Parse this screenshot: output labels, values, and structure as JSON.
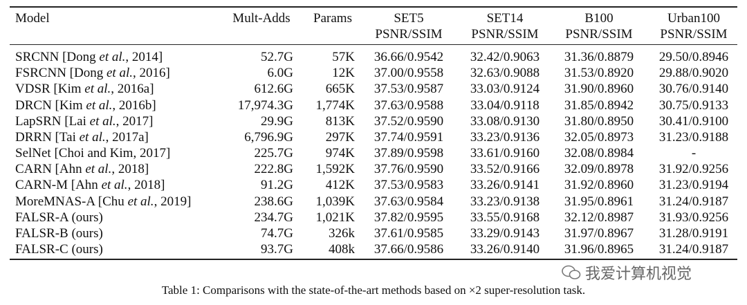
{
  "table": {
    "columns": [
      {
        "name": "Model"
      },
      {
        "name": "Mult-Adds"
      },
      {
        "name": "Params"
      },
      {
        "name": "SET5",
        "sub": "PSNR/SSIM"
      },
      {
        "name": "SET14",
        "sub": "PSNR/SSIM"
      },
      {
        "name": "B100",
        "sub": "PSNR/SSIM"
      },
      {
        "name": "Urban100",
        "sub": "PSNR/SSIM"
      }
    ],
    "rows": [
      [
        "SRCNN [Dong et al., 2014]",
        "52.7G",
        "57K",
        "36.66/0.9542",
        "32.42/0.9063",
        "31.36/0.8879",
        "29.50/0.8946"
      ],
      [
        "FSRCNN [Dong et al., 2016]",
        "6.0G",
        "12K",
        "37.00/0.9558",
        "32.63/0.9088",
        "31.53/0.8920",
        "29.88/0.9020"
      ],
      [
        "VDSR [Kim et al., 2016a]",
        "612.6G",
        "665K",
        "37.53/0.9587",
        "33.03/0.9124",
        "31.90/0.8960",
        "30.76/0.9140"
      ],
      [
        "DRCN [Kim et al., 2016b]",
        "17,974.3G",
        "1,774K",
        "37.63/0.9588",
        "33.04/0.9118",
        "31.85/0.8942",
        "30.75/0.9133"
      ],
      [
        "LapSRN [Lai et al., 2017]",
        "29.9G",
        "813K",
        "37.52/0.9590",
        "33.08/0.9130",
        "31.80/0.8950",
        "30.41/0.9100"
      ],
      [
        "DRRN [Tai et al., 2017a]",
        "6,796.9G",
        "297K",
        "37.74/0.9591",
        "33.23/0.9136",
        "32.05/0.8973",
        "31.23/0.9188"
      ],
      [
        "SelNet [Choi and Kim, 2017]",
        "225.7G",
        "974K",
        "37.89/0.9598",
        "33.61/0.9160",
        "32.08/0.8984",
        "-"
      ],
      [
        "CARN [Ahn et al., 2018]",
        "222.8G",
        "1,592K",
        "37.76/0.9590",
        "33.52/0.9166",
        "32.09/0.8978",
        "31.92/0.9256"
      ],
      [
        "CARN-M [Ahn et al., 2018]",
        "91.2G",
        "412K",
        "37.53/0.9583",
        "33.26/0.9141",
        "31.92/0.8960",
        "31.23/0.9194"
      ],
      [
        "MoreMNAS-A [Chu et al., 2019]",
        "238.6G",
        "1,039K",
        "37.63/0.9584",
        "33.23/0.9138",
        "31.95/0.8961",
        "31.24/0.9187"
      ],
      [
        "FALSR-A (ours)",
        "234.7G",
        "1,021K",
        "37.82/0.9595",
        "33.55/0.9168",
        "32.12/0.8987",
        "31.93/0.9256"
      ],
      [
        "FALSR-B (ours)",
        "74.7G",
        "326k",
        "37.61/0.9585",
        "33.29/0.9143",
        "31.97/0.8967",
        "31.28/0.9191"
      ],
      [
        "FALSR-C (ours)",
        "93.7G",
        "408k",
        "37.66/0.9586",
        "33.26/0.9140",
        "31.96/0.8965",
        "31.24/0.9187"
      ]
    ],
    "caption": "Table 1: Comparisons with the state-of-the-art methods based on ×2 super-resolution task.",
    "watermark": "我爱计算机视觉"
  }
}
